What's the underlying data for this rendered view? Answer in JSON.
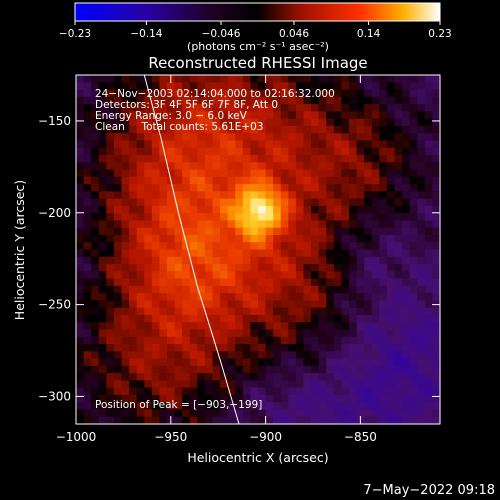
{
  "chart_data": {
    "type": "heatmap",
    "title": "Reconstructed RHESSI Image",
    "xlabel": "Heliocentric X (arcsec)",
    "ylabel": "Heliocentric Y (arcsec)",
    "xlim": [
      -1000,
      -808
    ],
    "ylim": [
      -315,
      -125
    ],
    "x_ticks": [
      {
        "value": -1000,
        "label": "−1000"
      },
      {
        "value": -950,
        "label": "−950"
      },
      {
        "value": -900,
        "label": "−900"
      },
      {
        "value": -850,
        "label": "−850"
      }
    ],
    "y_ticks": [
      {
        "value": -150,
        "label": "−150"
      },
      {
        "value": -200,
        "label": "−200"
      },
      {
        "value": -250,
        "label": "−250"
      },
      {
        "value": -300,
        "label": "−300"
      }
    ],
    "colorbar": {
      "range": [
        -0.23,
        0.23
      ],
      "ticks": [
        {
          "value": -0.23,
          "label": "−0.23"
        },
        {
          "value": -0.14,
          "label": "−0.14"
        },
        {
          "value": -0.046,
          "label": "−0.046"
        },
        {
          "value": 0.046,
          "label": "0.046"
        },
        {
          "value": 0.14,
          "label": "0.14"
        },
        {
          "value": 0.23,
          "label": "0.23"
        }
      ],
      "units_label": "(photons cm⁻² s⁻¹ asec⁻²)"
    },
    "annotations": [
      "24−Nov−2003 02:14:04.000 to 02:16:32.000",
      "Detectors: 3F 4F 5F 6F 7F 8F, Att 0",
      "Energy Range: 3.0 − 6.0 keV",
      "Clean     Total counts: 5.61E+03"
    ],
    "peak_label": "Position of Peak = [−903,−199]",
    "peak": {
      "x": -903,
      "y": -199,
      "value": 0.23
    },
    "limb_curve": [
      [
        -964,
        -125
      ],
      [
        -955,
        -160
      ],
      [
        -946,
        -200
      ],
      [
        -936,
        -240
      ],
      [
        -924,
        -280
      ],
      [
        -914,
        -315
      ]
    ],
    "blobs": [
      {
        "x": -903,
        "y": -199,
        "sx": 9,
        "sy": 10,
        "a": 0.16
      },
      {
        "x": -905,
        "y": -165,
        "sx": 45,
        "sy": 40,
        "a": 0.09
      },
      {
        "x": -950,
        "y": -200,
        "sx": 30,
        "sy": 60,
        "a": 0.07
      },
      {
        "x": -880,
        "y": -240,
        "sx": 30,
        "sy": 30,
        "a": 0.06
      },
      {
        "x": -960,
        "y": -285,
        "sx": 35,
        "sy": 30,
        "a": 0.05
      },
      {
        "x": -935,
        "y": -230,
        "sx": 25,
        "sy": 25,
        "a": 0.06
      },
      {
        "x": -845,
        "y": -170,
        "sx": 20,
        "sy": 20,
        "a": 0.03
      },
      {
        "x": -830,
        "y": -280,
        "sx": 25,
        "sy": 30,
        "a": -0.05
      },
      {
        "x": -845,
        "y": -225,
        "sx": 15,
        "sy": 15,
        "a": -0.03
      },
      {
        "x": -880,
        "y": -305,
        "sx": 25,
        "sy": 12,
        "a": -0.03
      }
    ]
  },
  "footer": {
    "timestamp": "7−May−2022 09:18"
  }
}
